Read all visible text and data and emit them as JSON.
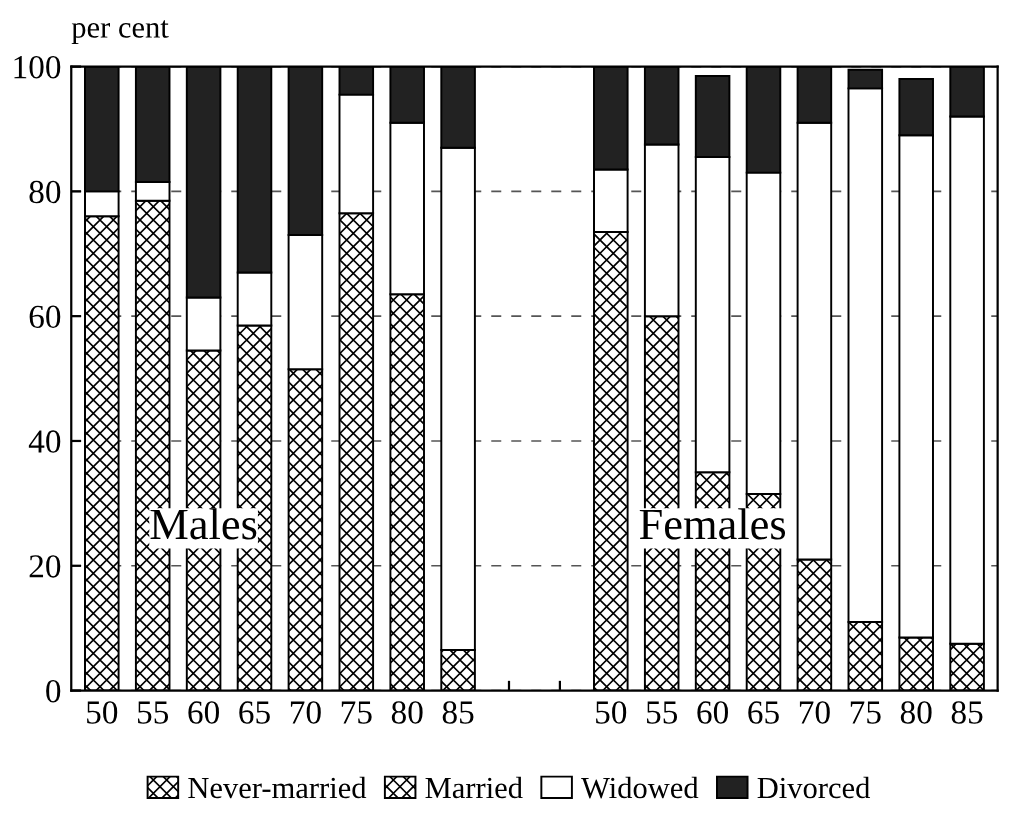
{
  "chart_data": {
    "type": "bar",
    "stacked": true,
    "ylabel": "per cent",
    "categories": [
      "50",
      "55",
      "60",
      "65",
      "70",
      "75",
      "80",
      "85",
      null,
      null,
      "50",
      "55",
      "60",
      "65",
      "70",
      "75",
      "80",
      "85"
    ],
    "series": [
      {
        "name": "Never-married",
        "color": "#000000",
        "values": [
          null,
          null,
          null,
          null,
          null,
          null,
          null,
          null,
          null,
          null,
          null,
          null,
          null,
          null,
          null,
          null,
          null,
          null
        ]
      },
      {
        "name": "Married",
        "color": "#000000",
        "values": [
          76,
          78.5,
          54.5,
          58.5,
          51.5,
          76.5,
          63.5,
          6.5,
          null,
          null,
          73.5,
          60,
          35,
          31.5,
          21,
          11,
          8.5,
          7.5
        ]
      },
      {
        "name": "Widowed",
        "color": "#ffffff",
        "values": [
          4,
          3,
          8.5,
          8.5,
          21.5,
          19,
          27.5,
          80.5,
          null,
          null,
          10,
          27.5,
          50.5,
          51.5,
          70,
          85.5,
          80.5,
          84.5
        ]
      },
      {
        "name": "Divorced",
        "color": "#222222",
        "values": [
          20,
          18.5,
          37,
          33,
          27,
          4.5,
          9,
          13,
          null,
          null,
          16.5,
          12.5,
          13,
          17,
          9,
          3,
          9,
          8
        ]
      }
    ],
    "ylim": [
      0,
      100
    ],
    "yticks": [
      0,
      20,
      40,
      60,
      80,
      100
    ],
    "grid": "y",
    "legend": "bottom",
    "annotations": [
      "Males",
      "Females"
    ]
  }
}
